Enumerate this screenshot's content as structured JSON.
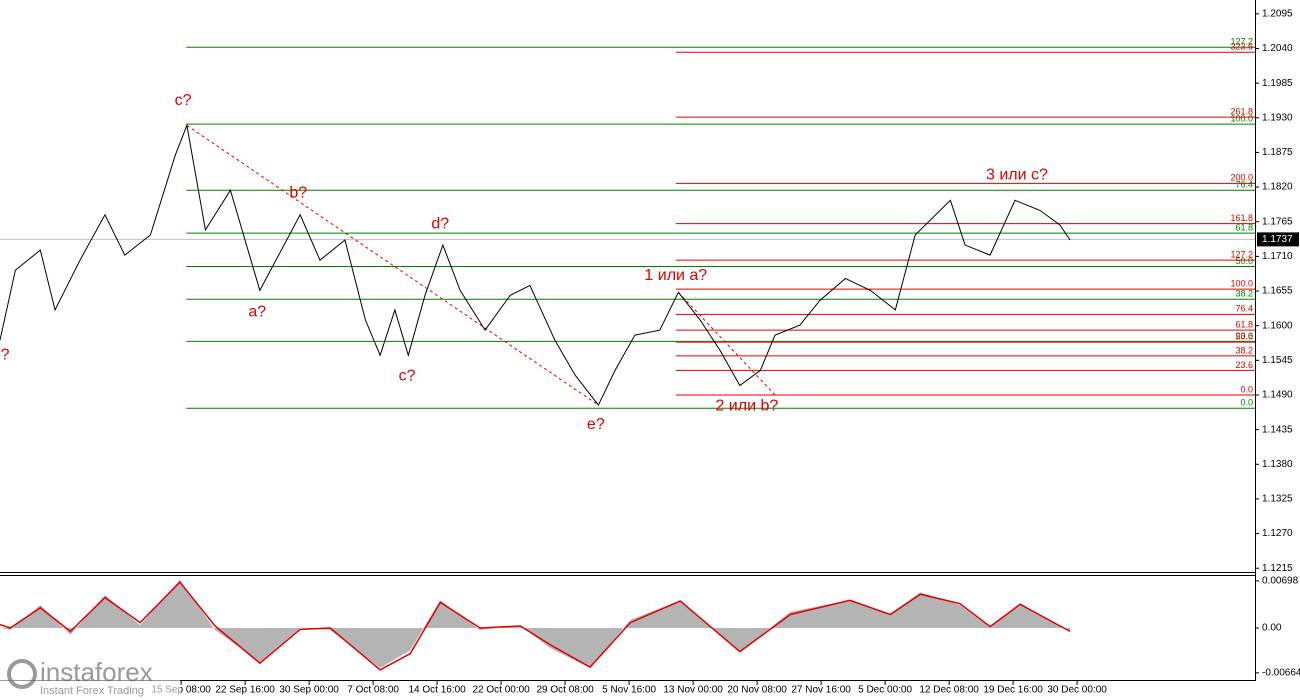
{
  "chart_data": [
    {
      "type": "line",
      "x": [
        -2.83,
        -2.59,
        -2.2,
        -1.97,
        -1.58,
        -1.19,
        -0.88,
        -0.48,
        -0.09,
        0.09,
        0.38,
        0.77,
        1.23,
        1.86,
        2.17,
        2.56,
        2.88,
        3.11,
        3.34,
        3.55,
        3.81,
        4.09,
        4.36,
        4.75,
        5.14,
        5.45,
        5.84,
        6.16,
        6.52,
        6.78,
        7.09,
        7.48,
        7.77,
        8.11,
        8.42,
        8.73,
        9.05,
        9.28,
        9.67,
        9.98,
        10.38,
        10.77,
        11.16,
        11.47,
        12.02,
        12.25,
        12.64,
        13.03,
        13.42,
        13.73,
        13.89
      ],
      "series": [
        {
          "color": "#000000",
          "values": [
            1.1577,
            1.1688,
            1.172,
            1.1625,
            1.1704,
            1.1776,
            1.1712,
            1.1744,
            1.1871,
            1.1918,
            1.1752,
            1.1815,
            1.1656,
            1.1776,
            1.1704,
            1.1736,
            1.1609,
            1.1553,
            1.1625,
            1.1553,
            1.1648,
            1.1728,
            1.1656,
            1.1593,
            1.1648,
            1.1664,
            1.1577,
            1.1521,
            1.1474,
            1.1529,
            1.1585,
            1.1593,
            1.1653,
            1.1609,
            1.1561,
            1.1505,
            1.1529,
            1.1585,
            1.1601,
            1.164,
            1.1675,
            1.1656,
            1.1625,
            1.1744,
            1.1799,
            1.1728,
            1.1712,
            1.1799,
            1.1783,
            1.176,
            1.1736
          ]
        }
      ],
      "xlim": [
        -2.83,
        16.78
      ],
      "xticks": [
        {
          "value": 0,
          "label": "15 Sep 08:00"
        },
        {
          "value": 1,
          "label": "22 Sep 16:00"
        },
        {
          "value": 2,
          "label": "30 Sep 00:00"
        },
        {
          "value": 3,
          "label": "7 Oct 08:00"
        },
        {
          "value": 4,
          "label": "14 Oct 16:00"
        },
        {
          "value": 5,
          "label": "22 Oct 00:00"
        },
        {
          "value": 6,
          "label": "29 Oct 08:00"
        },
        {
          "value": 7,
          "label": "5 Nov 16:00"
        },
        {
          "value": 8,
          "label": "13 Nov 00:00"
        },
        {
          "value": 9,
          "label": "20 Nov 08:00"
        },
        {
          "value": 10,
          "label": "27 Nov 16:00"
        },
        {
          "value": 11,
          "label": "5 Dec 00:00"
        },
        {
          "value": 12,
          "label": "12 Dec 08:00"
        },
        {
          "value": 13,
          "label": "19 Dec 16:00"
        },
        {
          "value": 14,
          "label": "30 Dec 00:00"
        }
      ],
      "ylim": [
        1.1209,
        1.2117
      ],
      "yticks": [
        1.2095,
        {
          "value": 1.204,
          "label": "1.2040"
        },
        1.1985,
        {
          "value": 1.193,
          "label": "1.1930"
        },
        1.1875,
        {
          "value": 1.182,
          "label": "1.1820"
        },
        1.1765,
        {
          "value": 1.171,
          "label": "1.1710"
        },
        1.1655,
        {
          "value": 1.16,
          "label": "1.1600"
        },
        1.1545,
        {
          "value": 1.149,
          "label": "1.1490"
        },
        1.1435,
        {
          "value": 1.138,
          "label": "1.1380"
        },
        1.1325,
        {
          "value": 1.127,
          "label": "1.1270"
        },
        1.1215
      ],
      "last_price": 1.1737,
      "fibonacci": [
        {
          "color": "#008000",
          "x_start": 0.08,
          "levels": [
            {
              "value": 1.2042,
              "label": "127.2"
            },
            {
              "value": 1.192,
              "label": "100.0"
            },
            {
              "value": 1.1815,
              "label": "76.4"
            },
            {
              "value": 1.1747,
              "label": "61.8"
            },
            {
              "value": 1.1694,
              "label": "50.0"
            },
            {
              "value": 1.1642,
              "label": "38.2"
            },
            {
              "value": 1.1575,
              "label": "23.6"
            },
            {
              "value": 1.1469,
              "label": "0.0"
            }
          ]
        },
        {
          "color": "#e00000",
          "x_start": 7.73,
          "levels": [
            {
              "value": 1.2034,
              "label": "323.6"
            },
            {
              "value": 1.1931,
              "label": "261.8"
            },
            {
              "value": 1.1826,
              "label": "200.0"
            },
            {
              "value": 1.1762,
              "label": "161.8"
            },
            {
              "value": 1.1704,
              "label": "127.2"
            },
            {
              "value": 1.1658,
              "label": "100.0"
            },
            {
              "value": 1.1618,
              "label": "76.4"
            },
            {
              "value": 1.1593,
              "label": "61.8"
            },
            {
              "value": 1.1574,
              "label": "50.0"
            },
            {
              "value": 1.1552,
              "label": "38.2"
            },
            {
              "value": 1.1529,
              "label": "23.6"
            },
            {
              "value": 1.149,
              "label": "0.0"
            }
          ]
        }
      ],
      "trendlines": [
        {
          "color": "#e00000",
          "x": [
            0.09,
            6.52
          ],
          "y": [
            1.1918,
            1.1474
          ]
        },
        {
          "color": "#e00000",
          "x": [
            7.77,
            9.28
          ],
          "y": [
            1.1653,
            1.149
          ]
        }
      ],
      "annotations": [
        {
          "text": "?",
          "x": -2.75,
          "y": 1.1553
        },
        {
          "text": "c?",
          "x": 0.03,
          "y": 1.1957
        },
        {
          "text": "b?",
          "x": 1.83,
          "y": 1.181
        },
        {
          "text": "a?",
          "x": 1.19,
          "y": 1.1621
        },
        {
          "text": "d?",
          "x": 4.05,
          "y": 1.1761
        },
        {
          "text": "c?",
          "x": 3.53,
          "y": 1.152
        },
        {
          "text": "e?",
          "x": 6.48,
          "y": 1.1443
        },
        {
          "text": "1 или a?",
          "x": 7.73,
          "y": 1.1679
        },
        {
          "text": "2 или b?",
          "x": 8.84,
          "y": 1.1472
        },
        {
          "text": "3 или c?",
          "x": 13.06,
          "y": 1.1839
        }
      ]
    },
    {
      "type": "area",
      "x": [
        -2.83,
        -2.67,
        -2.2,
        -1.73,
        -1.19,
        -0.64,
        -0.02,
        0.53,
        1.23,
        1.86,
        2.33,
        3.11,
        3.58,
        4.05,
        4.67,
        5.3,
        5.77,
        6.39,
        7.02,
        7.8,
        8.73,
        9.52,
        10.45,
        11.08,
        11.55,
        12.17,
        12.64,
        13.11,
        13.89
      ],
      "series": [
        {
          "type": "area",
          "color": "#b4b4b4",
          "values": [
            0,
            -0.0003,
            0.0034,
            -0.001,
            0.0049,
            0.0004,
            0.0071,
            -0.0003,
            -0.005,
            0,
            -0.0003,
            -0.0059,
            -0.0033,
            0.0041,
            -0.0003,
            0.0004,
            -0.003,
            -0.0059,
            0.0012,
            0.0041,
            -0.0036,
            0.0024,
            0.0041,
            0.0019,
            0.0053,
            0.0034,
            0,
            0.0037,
            -0.0006
          ]
        },
        {
          "type": "line",
          "color": "#e00000",
          "values": [
            0.0005,
            0,
            0.003,
            -0.0005,
            0.0045,
            0.0008,
            0.0068,
            0.0003,
            -0.0052,
            -0.0002,
            0,
            -0.0062,
            -0.0038,
            0.0038,
            0,
            0.0003,
            -0.0025,
            -0.0058,
            0.0008,
            0.004,
            -0.0035,
            0.002,
            0.0041,
            0.002,
            0.005,
            0.0036,
            0.0002,
            0.0035,
            -0.0005
          ]
        }
      ],
      "xlim": [
        -2.83,
        16.78
      ],
      "ylim": [
        -0.0077,
        0.0077
      ],
      "yticks": [
        {
          "value": 0.00698,
          "label": "0.00698"
        },
        {
          "value": 0,
          "label": "0.00"
        },
        {
          "value": -0.00664,
          "label": "-0.00664"
        }
      ]
    }
  ],
  "brand": {
    "name": "instaforex",
    "tagline": "Instant Forex Trading"
  }
}
